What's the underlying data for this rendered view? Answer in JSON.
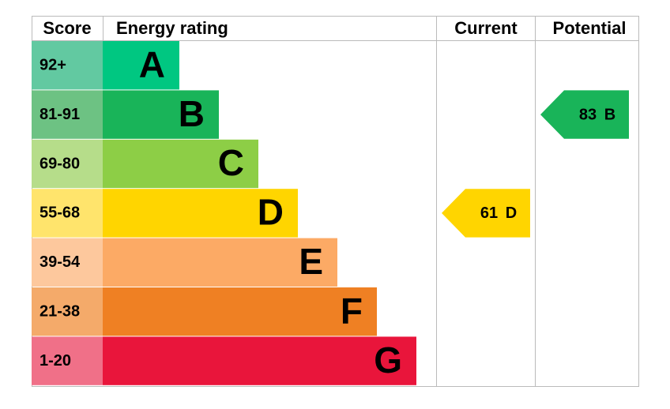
{
  "header": {
    "score": "Score",
    "rating": "Energy rating",
    "current": "Current",
    "potential": "Potential"
  },
  "bands": [
    {
      "score": "92+",
      "letter": "A",
      "color": "#00c781",
      "tint": "#62c9a1"
    },
    {
      "score": "81-91",
      "letter": "B",
      "color": "#19b459",
      "tint": "#6dc283"
    },
    {
      "score": "69-80",
      "letter": "C",
      "color": "#8dce46",
      "tint": "#b6dd8a"
    },
    {
      "score": "55-68",
      "letter": "D",
      "color": "#ffd500",
      "tint": "#ffe46c"
    },
    {
      "score": "39-54",
      "letter": "E",
      "color": "#fcaa65",
      "tint": "#fdc89d"
    },
    {
      "score": "21-38",
      "letter": "F",
      "color": "#ef8023",
      "tint": "#f4aa6a"
    },
    {
      "score": "1-20",
      "letter": "G",
      "color": "#e9153b",
      "tint": "#f07088"
    }
  ],
  "current": {
    "value": 61,
    "letter": "D"
  },
  "potential": {
    "value": 83,
    "letter": "B"
  }
}
